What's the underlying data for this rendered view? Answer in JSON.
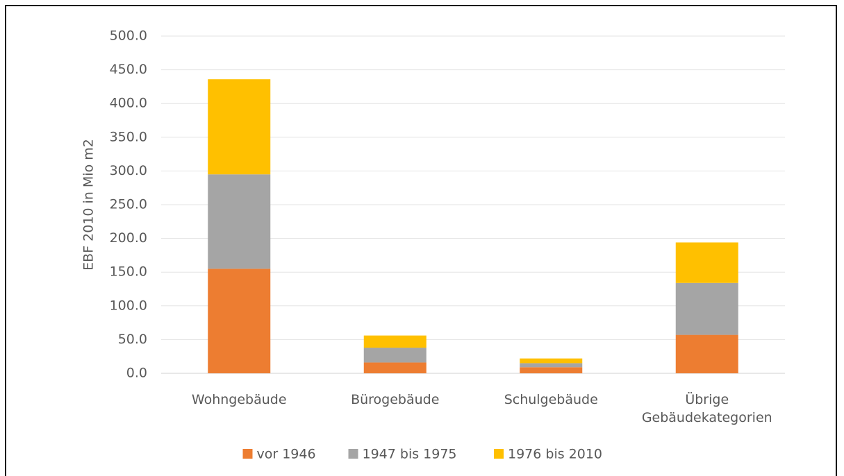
{
  "chart_data": {
    "type": "stacked_bar",
    "ylabel": "EBF 2010 in Mio m2",
    "categories": [
      "Wohngebäude",
      "Bürogebäude",
      "Schulgebäude",
      "Übrige Gebäudekategorien"
    ],
    "series": [
      {
        "name": "vor 1946",
        "color": "#ED7D31",
        "values": [
          155,
          16,
          9,
          57
        ]
      },
      {
        "name": "1947 bis 1975",
        "color": "#A5A5A5",
        "values": [
          140,
          22,
          6,
          77
        ]
      },
      {
        "name": "1976 bis 2010",
        "color": "#FFC000",
        "values": [
          141,
          18,
          7,
          60
        ]
      }
    ],
    "ylim": [
      0,
      500
    ],
    "yticks": [
      {
        "value": 0,
        "label": "0.0"
      },
      {
        "value": 50,
        "label": "50.0"
      },
      {
        "value": 100,
        "label": "100.0"
      },
      {
        "value": 150,
        "label": "150.0"
      },
      {
        "value": 200,
        "label": "200.0"
      },
      {
        "value": 250,
        "label": "250.0"
      },
      {
        "value": 300,
        "label": "300.0"
      },
      {
        "value": 350,
        "label": "350.0"
      },
      {
        "value": 400,
        "label": "400.0"
      },
      {
        "value": 450,
        "label": "450.0"
      },
      {
        "value": 500,
        "label": "500.0"
      }
    ],
    "grid": true,
    "legend": "bottom"
  }
}
